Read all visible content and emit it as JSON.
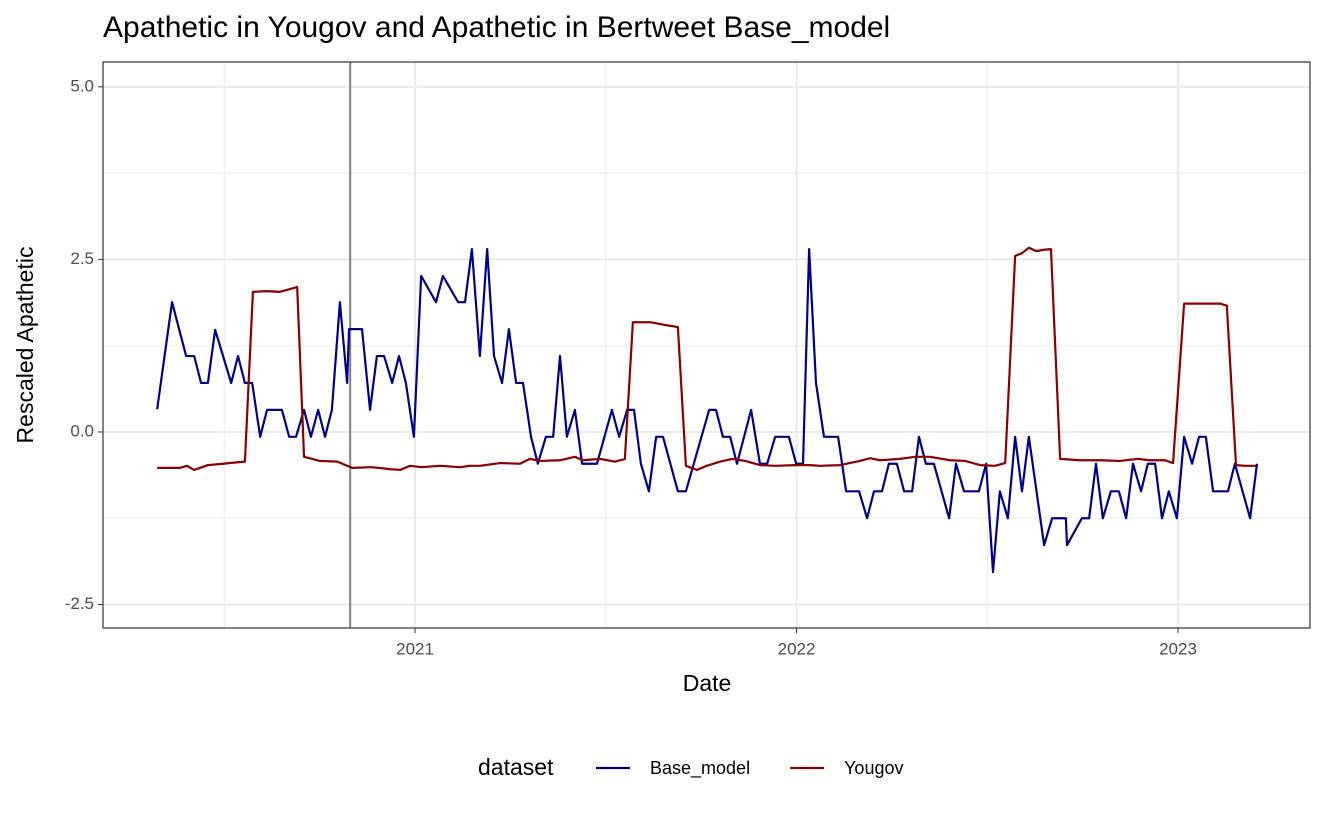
{
  "chart_data": {
    "type": "line",
    "title": "Apathetic  in Yougov and  Apathetic  in Bertweet  Base_model",
    "x_label": "Date",
    "y_label": "Rescaled  Apathetic",
    "legend_title": "dataset",
    "legend_position": "bottom",
    "grid": true,
    "xlim": [
      2020.182,
      2023.346
    ],
    "xticks": [
      2021,
      2022,
      2023
    ],
    "ylim": [
      -2.84,
      5.36
    ],
    "yticks": [
      -2.5,
      {
        "value": 0,
        "label": "0.0"
      },
      2.5,
      {
        "value": 5,
        "label": "5.0"
      }
    ],
    "vline": 2020.83,
    "series": [
      {
        "name": "Base_model",
        "color": "#00008b",
        "x": [
          2020.324,
          2020.363,
          2020.4,
          2020.421,
          2020.439,
          2020.457,
          2020.476,
          2020.518,
          2020.536,
          2020.554,
          2020.573,
          2020.594,
          2020.612,
          2020.651,
          2020.67,
          2020.688,
          2020.709,
          2020.727,
          2020.746,
          2020.764,
          2020.782,
          2020.803,
          2020.822,
          2020.827,
          2020.861,
          2020.882,
          2020.9,
          2020.919,
          2020.94,
          2020.958,
          2020.976,
          2020.997,
          2021.016,
          2021.055,
          2021.073,
          2021.113,
          2021.131,
          2021.149,
          2021.17,
          2021.189,
          2021.207,
          2021.228,
          2021.246,
          2021.265,
          2021.283,
          2021.304,
          2021.322,
          2021.343,
          2021.362,
          2021.38,
          2021.398,
          2021.419,
          2021.438,
          2021.477,
          2021.516,
          2021.535,
          2021.556,
          2021.574,
          2021.592,
          2021.613,
          2021.632,
          2021.65,
          2021.689,
          2021.71,
          2021.771,
          2021.789,
          2021.807,
          2021.826,
          2021.844,
          2021.881,
          2021.904,
          2021.923,
          2021.944,
          2021.98,
          2021.999,
          2022.017,
          2022.033,
          2022.051,
          2022.072,
          2022.109,
          2022.13,
          2022.164,
          2022.185,
          2022.203,
          2022.224,
          2022.242,
          2022.263,
          2022.282,
          2022.303,
          2022.321,
          2022.339,
          2022.36,
          2022.4,
          2022.418,
          2022.439,
          2022.478,
          2022.497,
          2022.515,
          2022.533,
          2022.554,
          2022.573,
          2022.591,
          2022.609,
          2022.649,
          2022.67,
          2022.706,
          2022.709,
          2022.748,
          2022.767,
          2022.785,
          2022.803,
          2022.824,
          2022.845,
          2022.864,
          2022.882,
          2022.903,
          2022.921,
          2022.94,
          2022.958,
          2022.976,
          2022.997,
          2023.016,
          2023.037,
          2023.055,
          2023.073,
          2023.092,
          2023.131,
          2023.149,
          2023.189,
          2023.207
        ],
        "values": [
          0.33,
          1.88,
          1.1,
          1.1,
          0.71,
          0.71,
          1.48,
          0.71,
          1.1,
          0.71,
          0.71,
          -0.07,
          0.32,
          0.32,
          -0.07,
          -0.07,
          0.32,
          -0.07,
          0.32,
          -0.07,
          0.32,
          1.88,
          0.71,
          1.49,
          1.49,
          0.32,
          1.1,
          1.1,
          0.71,
          1.1,
          0.71,
          -0.07,
          2.26,
          1.88,
          2.26,
          1.88,
          1.88,
          2.65,
          1.1,
          2.65,
          1.1,
          0.71,
          1.49,
          0.71,
          0.71,
          -0.07,
          -0.46,
          -0.07,
          -0.07,
          1.1,
          -0.07,
          0.32,
          -0.46,
          -0.46,
          0.32,
          -0.07,
          0.32,
          0.32,
          -0.46,
          -0.86,
          -0.07,
          -0.07,
          -0.86,
          -0.86,
          0.32,
          0.32,
          -0.07,
          -0.07,
          -0.46,
          0.32,
          -0.46,
          -0.46,
          -0.07,
          -0.07,
          -0.46,
          -0.46,
          2.65,
          0.71,
          -0.07,
          -0.07,
          -0.86,
          -0.86,
          -1.25,
          -0.86,
          -0.86,
          -0.46,
          -0.46,
          -0.86,
          -0.86,
          -0.07,
          -0.46,
          -0.46,
          -1.25,
          -0.46,
          -0.86,
          -0.86,
          -0.46,
          -2.03,
          -0.86,
          -1.25,
          -0.07,
          -0.86,
          -0.07,
          -1.64,
          -1.25,
          -1.25,
          -1.64,
          -1.25,
          -1.25,
          -0.46,
          -1.25,
          -0.86,
          -0.86,
          -1.25,
          -0.46,
          -0.86,
          -0.46,
          -0.46,
          -1.25,
          -0.86,
          -1.25,
          -0.07,
          -0.46,
          -0.07,
          -0.07,
          -0.86,
          -0.86,
          -0.46,
          -1.25,
          -0.46
        ]
      },
      {
        "name": "Yougov",
        "color": "#8b0000",
        "x": [
          2020.324,
          2020.384,
          2020.402,
          2020.421,
          2020.457,
          2020.497,
          2020.515,
          2020.554,
          2020.575,
          2020.612,
          2020.646,
          2020.672,
          2020.691,
          2020.709,
          2020.751,
          2020.796,
          2020.822,
          2020.835,
          2020.887,
          2020.937,
          2020.961,
          2020.987,
          2021.016,
          2021.066,
          2021.118,
          2021.144,
          2021.17,
          2021.223,
          2021.275,
          2021.301,
          2021.328,
          2021.38,
          2021.419,
          2021.44,
          2021.485,
          2021.524,
          2021.55,
          2021.571,
          2021.616,
          2021.655,
          2021.689,
          2021.71,
          2021.739,
          2021.765,
          2021.799,
          2021.831,
          2021.865,
          2021.904,
          2021.944,
          2021.996,
          2022.035,
          2022.062,
          2022.114,
          2022.166,
          2022.193,
          2022.219,
          2022.271,
          2022.311,
          2022.35,
          2022.402,
          2022.442,
          2022.481,
          2022.52,
          2022.547,
          2022.573,
          2022.591,
          2022.609,
          2022.628,
          2022.649,
          2022.667,
          2022.691,
          2022.743,
          2022.796,
          2022.848,
          2022.895,
          2022.927,
          2022.966,
          2022.987,
          2023.016,
          2023.058,
          2023.11,
          2023.128,
          2023.152,
          2023.176,
          2023.204
        ],
        "values": [
          -0.52,
          -0.52,
          -0.49,
          -0.55,
          -0.48,
          -0.46,
          -0.45,
          -0.43,
          2.03,
          2.04,
          2.03,
          2.07,
          2.1,
          -0.36,
          -0.42,
          -0.43,
          -0.49,
          -0.52,
          -0.51,
          -0.54,
          -0.55,
          -0.49,
          -0.51,
          -0.49,
          -0.51,
          -0.49,
          -0.49,
          -0.45,
          -0.46,
          -0.39,
          -0.42,
          -0.41,
          -0.36,
          -0.41,
          -0.39,
          -0.43,
          -0.39,
          1.59,
          1.59,
          1.55,
          1.52,
          -0.49,
          -0.55,
          -0.49,
          -0.43,
          -0.39,
          -0.42,
          -0.48,
          -0.49,
          -0.48,
          -0.48,
          -0.49,
          -0.48,
          -0.42,
          -0.38,
          -0.41,
          -0.39,
          -0.36,
          -0.36,
          -0.41,
          -0.42,
          -0.48,
          -0.49,
          -0.45,
          2.55,
          2.59,
          2.67,
          2.62,
          2.64,
          2.65,
          -0.39,
          -0.41,
          -0.41,
          -0.42,
          -0.39,
          -0.41,
          -0.41,
          -0.45,
          1.86,
          1.86,
          1.86,
          1.83,
          -0.48,
          -0.49,
          -0.49
        ]
      }
    ]
  }
}
